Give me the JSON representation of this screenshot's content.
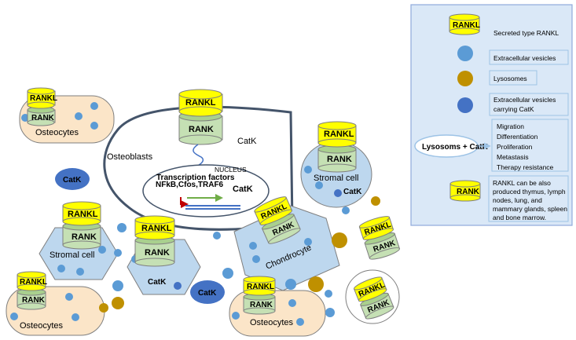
{
  "labels": {
    "rankl": "RANKL",
    "rank": "RANK",
    "catk": "CatK",
    "osteocytes": "Osteocytes",
    "osteoblasts": "Osteoblasts",
    "stromal_cell": "Stromal cell",
    "chondrocyte": "Chondrocyte",
    "nucleus": "NUCLEUS",
    "transcription_factors": "Transcription  factors",
    "tf_list": "NFkB,Cfos,TRAF6"
  },
  "legend": {
    "secreted_rankl": "Secreted type RANKL",
    "extracellular_vesicles": "Extracellular vesicles",
    "lysosomes": "Lysosomes",
    "ev_catk_line1": "Extracellular vesicles",
    "ev_catk_line2": "carrying CatK",
    "lysosoms_catk": "Lysosoms + CatK",
    "effects": [
      "Migration",
      "Differentiation",
      "Proliferation",
      "Metastasis",
      "Therapy resistance"
    ],
    "rank_note": [
      "RANKL  can be also",
      "produced thymus, lymph",
      "nodes, lung, and",
      "mammary glands, spleen",
      "and bone marrow."
    ]
  },
  "colors": {
    "rankl_yellow": "#ffff00",
    "rank_green": "#c5e0b4",
    "vesicle_blue": "#5b9bd5",
    "lysosome_gold": "#bf9000",
    "catk_blue": "#4472c4",
    "osteocyte_fill": "#fbe5c8",
    "stromal_fill": "#bdd7ee",
    "legend_fill": "#dae8f7"
  }
}
